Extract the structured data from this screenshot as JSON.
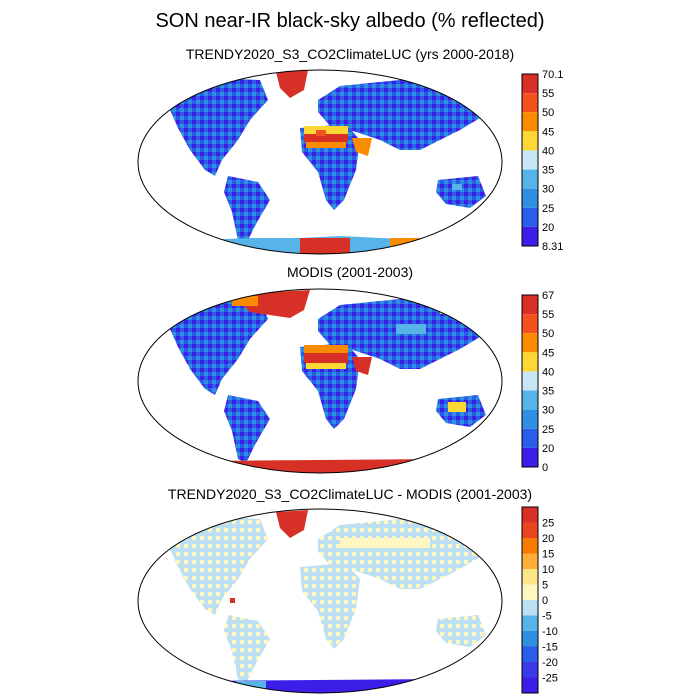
{
  "title": "SON near-IR black-sky albedo (% reflected)",
  "panels": [
    {
      "title": "TRENDY2020_S3_CO2ClimateLUC (yrs 2000-2018)",
      "colorbar": {
        "labels": [
          "70.1",
          "55",
          "50",
          "45",
          "40",
          "35",
          "30",
          "25",
          "20",
          "8.31"
        ],
        "colors": [
          "#d73027",
          "#f4511e",
          "#fb8c00",
          "#fdd835",
          "#c8e6f5",
          "#56b4e9",
          "#2f8fe0",
          "#2a5ee8",
          "#3b1ee8"
        ]
      }
    },
    {
      "title": "MODIS (2001-2003)",
      "colorbar": {
        "labels": [
          "67",
          "55",
          "50",
          "45",
          "40",
          "35",
          "30",
          "25",
          "20",
          "0"
        ],
        "colors": [
          "#d73027",
          "#f4511e",
          "#fb8c00",
          "#fdd835",
          "#c8e6f5",
          "#56b4e9",
          "#2f8fe0",
          "#2a5ee8",
          "#3b1ee8"
        ]
      }
    },
    {
      "title": "TRENDY2020_S3_CO2ClimateLUC - MODIS (2001-2003)",
      "colorbar": {
        "labels": [
          "25",
          "20",
          "15",
          "10",
          "5",
          "0",
          "-5",
          "-10",
          "-15",
          "-20",
          "-25"
        ],
        "colors": [
          "#d73027",
          "#e8451e",
          "#f57c00",
          "#fdae3a",
          "#fde58a",
          "#fff6c2",
          "#bcdff2",
          "#56b4e9",
          "#2f8fe0",
          "#2a5ee8",
          "#3a3ae8",
          "#3b1ee8"
        ]
      }
    }
  ]
}
